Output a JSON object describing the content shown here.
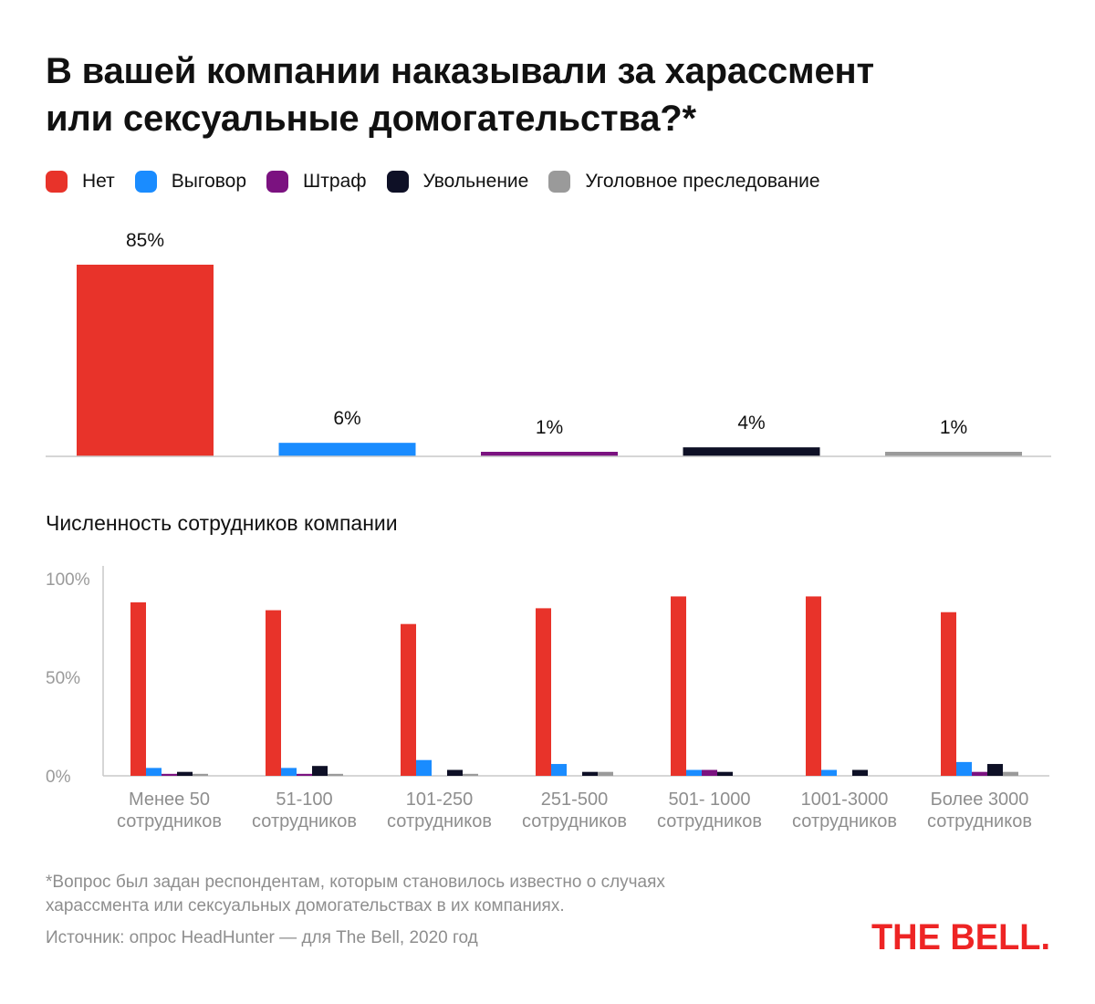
{
  "title": {
    "line1": "В вашей компании наказывали за харассмент",
    "line2": "или сексуальные домогательства?*"
  },
  "legend": [
    {
      "label": "Нет",
      "color": "#e8332a"
    },
    {
      "label": "Выговор",
      "color": "#1a8cff"
    },
    {
      "label": "Штраф",
      "color": "#7b1280"
    },
    {
      "label": "Увольнение",
      "color": "#0e1026"
    },
    {
      "label": "Уголовное преследование",
      "color": "#9a9a9a"
    }
  ],
  "subtitle": "Численность сотрудников компании",
  "footnote": {
    "line1": "*Вопрос был задан респондентам, которым становилось известно о случаях",
    "line2": "харассмента или сексуальных домогательствах в их компаниях."
  },
  "source": "Источник: опрос HeadHunter — для The Bell, 2020 год",
  "logo": {
    "text": "THE BELL.",
    "color": "#ee2424"
  },
  "chart_data": [
    {
      "type": "bar",
      "categories": [
        "Нет",
        "Выговор",
        "Штраф",
        "Увольнение",
        "Уголовное преследование"
      ],
      "values": [
        85,
        6,
        1,
        4,
        1
      ],
      "value_labels": [
        "85%",
        "6%",
        "1%",
        "4%",
        "1%"
      ],
      "colors": [
        "#e8332a",
        "#1a8cff",
        "#7b1280",
        "#0e1026",
        "#9a9a9a"
      ],
      "ylim": [
        0,
        85
      ]
    },
    {
      "type": "bar",
      "title": "Численность сотрудников компании",
      "categories": [
        [
          "Менее 50",
          "сотрудников"
        ],
        [
          "51-100",
          "сотрудников"
        ],
        [
          "101-250",
          "сотрудников"
        ],
        [
          "251-500",
          "сотрудников"
        ],
        [
          "501- 1000",
          "сотрудников"
        ],
        [
          "1001-3000",
          "сотрудников"
        ],
        [
          "Более 3000",
          "сотрудников"
        ]
      ],
      "yticks": [
        "100%",
        "50%",
        "0%"
      ],
      "ylim": [
        0,
        100
      ],
      "grid": false,
      "series": [
        {
          "name": "Нет",
          "color": "#e8332a",
          "values": [
            88,
            84,
            77,
            85,
            91,
            91,
            83
          ]
        },
        {
          "name": "Выговор",
          "color": "#1a8cff",
          "values": [
            4,
            4,
            8,
            6,
            3,
            3,
            7
          ]
        },
        {
          "name": "Штраф",
          "color": "#7b1280",
          "values": [
            1,
            1,
            0,
            0,
            3,
            0,
            2
          ]
        },
        {
          "name": "Увольнение",
          "color": "#0e1026",
          "values": [
            2,
            5,
            3,
            2,
            2,
            3,
            6
          ]
        },
        {
          "name": "Уголовное преследование",
          "color": "#9a9a9a",
          "values": [
            1,
            1,
            1,
            2,
            0,
            0,
            2
          ]
        }
      ]
    }
  ]
}
